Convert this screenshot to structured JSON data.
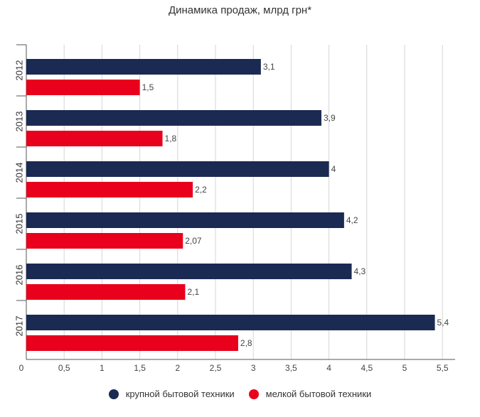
{
  "chart_data": {
    "type": "bar",
    "orientation": "horizontal",
    "title": "Динамика продаж, млрд грн*",
    "categories": [
      "2012",
      "2013",
      "2014",
      "2015",
      "2016",
      "2017"
    ],
    "series": [
      {
        "name": "крупной бытовой техники",
        "color": "#1b2a52",
        "values": [
          3.1,
          3.9,
          4,
          4.2,
          4.3,
          5.4
        ],
        "labels": [
          "3,1",
          "3,9",
          "4",
          "4,2",
          "4,3",
          "5,4"
        ]
      },
      {
        "name": "мелкой бытовой техники",
        "color": "#e8001c",
        "values": [
          1.5,
          1.8,
          2.2,
          2.07,
          2.1,
          2.8
        ],
        "labels": [
          "1,5",
          "1,8",
          "2,2",
          "2,07",
          "2,1",
          "2,8"
        ]
      }
    ],
    "xlim": [
      0,
      5.5
    ],
    "xticks": [
      "0",
      "0,5",
      "1",
      "1,5",
      "2",
      "2,5",
      "3",
      "3,5",
      "4",
      "4,5",
      "5",
      "5,5"
    ],
    "grid": true,
    "legend_position": "bottom"
  }
}
